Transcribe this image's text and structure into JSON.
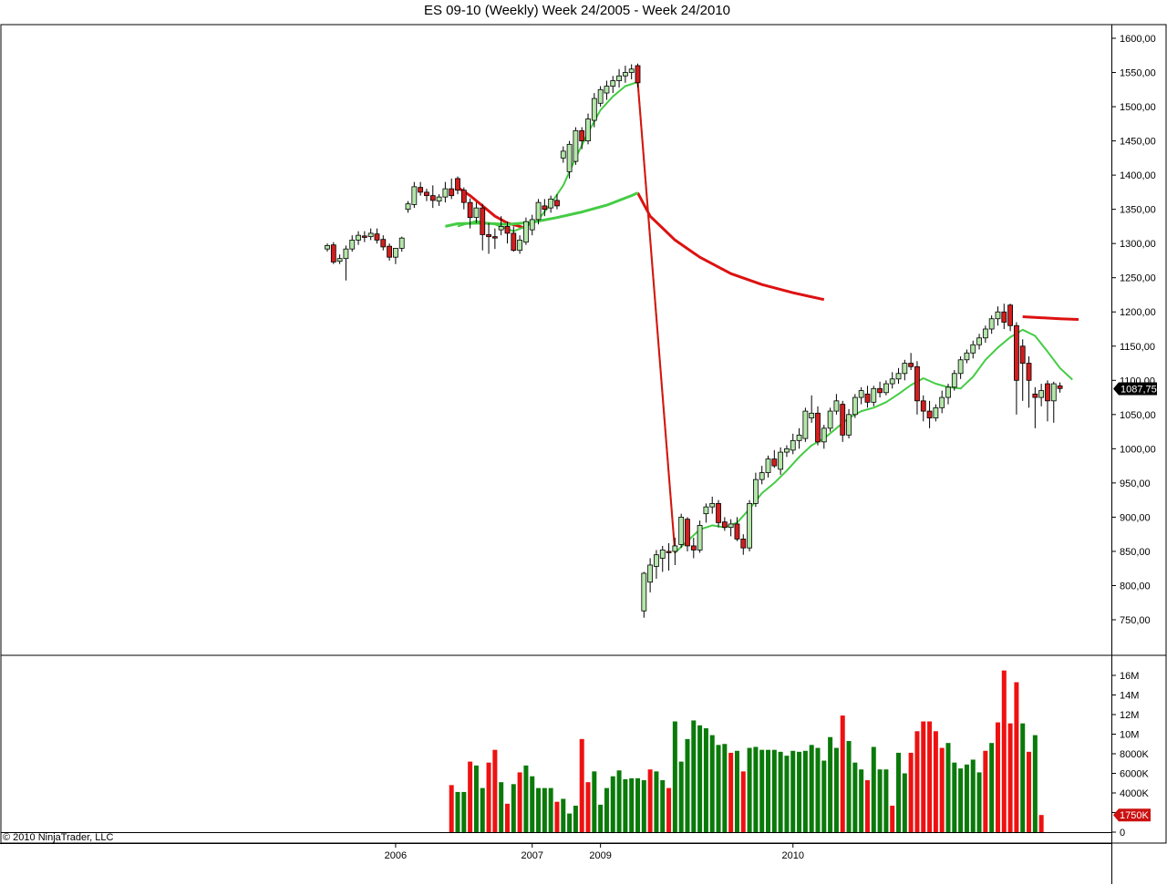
{
  "title": "ES 09-10 (Weekly)  Week 24/2005 - Week 24/2010",
  "copyright": "© 2010 NinjaTrader, LLC",
  "colors": {
    "up_candle": "#b4e6aa",
    "down_candle": "#d21e1e",
    "wick": "#000000",
    "fast_ma": "#44cc44",
    "slow_ma_green": "#44cc44",
    "slow_ma_red": "#dd1111",
    "volume_up": "#0a7a0a",
    "volume_down": "#ee1111",
    "price_marker": "#000000",
    "volume_marker": "#cc1111"
  },
  "chart_data": [
    {
      "type": "candlestick",
      "title": "ES 09-10 (Weekly)  Week 24/2005 - Week 24/2010",
      "y_ticks": [
        "1600,00",
        "1550,00",
        "1500,00",
        "1450,00",
        "1400,00",
        "1350,00",
        "1300,00",
        "1250,00",
        "1200,00",
        "1150,00",
        "1100,00",
        "1050,00",
        "1000,00",
        "950,00",
        "900,00",
        "850,00",
        "800,00",
        "750,00"
      ],
      "ylim": [
        700,
        1615
      ],
      "last_price_label": "1087,75",
      "last_price": 1087.75,
      "x_labels": [
        "2006",
        "2007",
        "2009",
        "2010"
      ],
      "x_label_bars": [
        11,
        33,
        44,
        75
      ],
      "gap_bars": [
        43,
        44
      ],
      "ohlc": [
        [
          1292,
          1300,
          1288,
          1297
        ],
        [
          1298,
          1302,
          1270,
          1273
        ],
        [
          1274,
          1284,
          1270,
          1278
        ],
        [
          1278,
          1297,
          1246,
          1292
        ],
        [
          1292,
          1312,
          1288,
          1305
        ],
        [
          1305,
          1318,
          1298,
          1312
        ],
        [
          1311,
          1318,
          1302,
          1309
        ],
        [
          1310,
          1322,
          1305,
          1315
        ],
        [
          1314,
          1322,
          1300,
          1305
        ],
        [
          1306,
          1312,
          1290,
          1295
        ],
        [
          1296,
          1300,
          1275,
          1280
        ],
        [
          1280,
          1290,
          1270,
          1293
        ],
        [
          1293,
          1310,
          1288,
          1308
        ],
        [
          1350,
          1362,
          1345,
          1358
        ],
        [
          1357,
          1390,
          1352,
          1383
        ],
        [
          1382,
          1390,
          1370,
          1375
        ],
        [
          1375,
          1380,
          1362,
          1370
        ],
        [
          1370,
          1385,
          1352,
          1363
        ],
        [
          1362,
          1372,
          1355,
          1368
        ],
        [
          1368,
          1390,
          1360,
          1380
        ],
        [
          1380,
          1395,
          1365,
          1370
        ],
        [
          1395,
          1398,
          1372,
          1378
        ],
        [
          1378,
          1382,
          1350,
          1360
        ],
        [
          1360,
          1366,
          1322,
          1338
        ],
        [
          1338,
          1360,
          1330,
          1352
        ],
        [
          1352,
          1358,
          1290,
          1313
        ],
        [
          1313,
          1330,
          1285,
          1310
        ],
        [
          1310,
          1322,
          1292,
          1308
        ],
        [
          1320,
          1340,
          1312,
          1325
        ],
        [
          1325,
          1332,
          1300,
          1315
        ],
        [
          1315,
          1325,
          1288,
          1290
        ],
        [
          1290,
          1312,
          1285,
          1305
        ],
        [
          1302,
          1338,
          1298,
          1332
        ],
        [
          1320,
          1342,
          1312,
          1335
        ],
        [
          1335,
          1365,
          1328,
          1360
        ],
        [
          1355,
          1365,
          1340,
          1350
        ],
        [
          1352,
          1370,
          1345,
          1365
        ],
        [
          1363,
          1372,
          1350,
          1355
        ],
        [
          1425,
          1442,
          1418,
          1435
        ],
        [
          1405,
          1450,
          1395,
          1445
        ],
        [
          1420,
          1470,
          1415,
          1465
        ],
        [
          1465,
          1470,
          1438,
          1450
        ],
        [
          1450,
          1490,
          1445,
          1482
        ],
        [
          1480,
          1520,
          1470,
          1512
        ],
        [
          1505,
          1530,
          1500,
          1525
        ],
        [
          1520,
          1538,
          1510,
          1530
        ],
        [
          1530,
          1545,
          1520,
          1538
        ],
        [
          1538,
          1555,
          1528,
          1545
        ],
        [
          1545,
          1560,
          1535,
          1550
        ],
        [
          1550,
          1562,
          1540,
          1555
        ],
        [
          1560,
          1563,
          1528,
          1535
        ],
        [
          763,
          820,
          753,
          818
        ],
        [
          805,
          840,
          790,
          830
        ],
        [
          828,
          852,
          810,
          845
        ],
        [
          840,
          858,
          820,
          852
        ],
        [
          850,
          862,
          822,
          848
        ],
        [
          850,
          870,
          830,
          858
        ],
        [
          860,
          905,
          855,
          900
        ],
        [
          897,
          900,
          850,
          858
        ],
        [
          858,
          870,
          840,
          852
        ],
        [
          852,
          895,
          848,
          888
        ],
        [
          905,
          920,
          892,
          915
        ],
        [
          915,
          930,
          905,
          920
        ],
        [
          920,
          925,
          885,
          892
        ],
        [
          893,
          900,
          880,
          885
        ],
        [
          885,
          897,
          872,
          890
        ],
        [
          890,
          900,
          865,
          868
        ],
        [
          868,
          875,
          845,
          855
        ],
        [
          855,
          925,
          850,
          920
        ],
        [
          920,
          965,
          915,
          955
        ],
        [
          955,
          975,
          948,
          965
        ],
        [
          965,
          990,
          958,
          985
        ],
        [
          985,
          998,
          972,
          975
        ],
        [
          970,
          1002,
          962,
          995
        ],
        [
          995,
          1005,
          988,
          1000
        ],
        [
          998,
          1022,
          992,
          1012
        ],
        [
          1012,
          1030,
          1000,
          1020
        ],
        [
          1015,
          1060,
          1010,
          1055
        ],
        [
          1045,
          1078,
          1038,
          1052
        ],
        [
          1052,
          1062,
          1005,
          1010
        ],
        [
          1010,
          1035,
          1000,
          1030
        ],
        [
          1030,
          1060,
          1025,
          1055
        ],
        [
          1055,
          1080,
          1050,
          1070
        ],
        [
          1065,
          1070,
          1010,
          1020
        ],
        [
          1020,
          1058,
          1015,
          1050
        ],
        [
          1050,
          1080,
          1045,
          1075
        ],
        [
          1075,
          1090,
          1065,
          1085
        ],
        [
          1080,
          1092,
          1060,
          1068
        ],
        [
          1068,
          1092,
          1062,
          1088
        ],
        [
          1088,
          1098,
          1075,
          1082
        ],
        [
          1082,
          1100,
          1078,
          1095
        ],
        [
          1095,
          1112,
          1088,
          1102
        ],
        [
          1102,
          1118,
          1095,
          1110
        ],
        [
          1110,
          1130,
          1100,
          1125
        ],
        [
          1125,
          1140,
          1115,
          1120
        ],
        [
          1120,
          1128,
          1050,
          1070
        ],
        [
          1070,
          1078,
          1040,
          1055
        ],
        [
          1055,
          1070,
          1030,
          1045
        ],
        [
          1045,
          1065,
          1040,
          1060
        ],
        [
          1060,
          1085,
          1052,
          1075
        ],
        [
          1075,
          1095,
          1065,
          1090
        ],
        [
          1090,
          1115,
          1085,
          1110
        ],
        [
          1110,
          1135,
          1102,
          1130
        ],
        [
          1130,
          1145,
          1125,
          1140
        ],
        [
          1140,
          1158,
          1132,
          1152
        ],
        [
          1152,
          1168,
          1145,
          1162
        ],
        [
          1162,
          1180,
          1155,
          1175
        ],
        [
          1175,
          1195,
          1168,
          1190
        ],
        [
          1190,
          1208,
          1180,
          1200
        ],
        [
          1200,
          1212,
          1175,
          1185
        ],
        [
          1210,
          1212,
          1172,
          1180
        ],
        [
          1180,
          1185,
          1050,
          1100
        ],
        [
          1150,
          1160,
          1070,
          1125
        ],
        [
          1125,
          1135,
          1060,
          1100
        ],
        [
          1080,
          1090,
          1030,
          1075
        ],
        [
          1075,
          1095,
          1062,
          1085
        ],
        [
          1095,
          1100,
          1040,
          1070
        ],
        [
          1070,
          1098,
          1038,
          1095
        ],
        [
          1092,
          1097,
          1082,
          1088
        ]
      ],
      "fast_ma": [
        {
          "bar": 21,
          "value": 1325
        },
        {
          "bar": 24,
          "value": 1333
        },
        {
          "bar": 27,
          "value": 1328
        },
        {
          "bar": 30,
          "value": 1318
        },
        {
          "bar": 32,
          "value": 1325
        },
        {
          "bar": 34,
          "value": 1335
        },
        {
          "bar": 36,
          "value": 1358
        },
        {
          "bar": 38,
          "value": 1385
        },
        {
          "bar": 40,
          "value": 1425
        },
        {
          "bar": 42,
          "value": 1462
        },
        {
          "bar": 44,
          "value": 1495
        },
        {
          "bar": 46,
          "value": 1515
        },
        {
          "bar": 48,
          "value": 1530
        },
        {
          "bar": 50,
          "value": 1536
        },
        {
          "bar": 56,
          "value": 848
        },
        {
          "bar": 58,
          "value": 865
        },
        {
          "bar": 60,
          "value": 882
        },
        {
          "bar": 62,
          "value": 888
        },
        {
          "bar": 64,
          "value": 885
        },
        {
          "bar": 66,
          "value": 892
        },
        {
          "bar": 68,
          "value": 912
        },
        {
          "bar": 70,
          "value": 935
        },
        {
          "bar": 72,
          "value": 950
        },
        {
          "bar": 74,
          "value": 968
        },
        {
          "bar": 76,
          "value": 988
        },
        {
          "bar": 78,
          "value": 1005
        },
        {
          "bar": 80,
          "value": 1015
        },
        {
          "bar": 82,
          "value": 1030
        },
        {
          "bar": 84,
          "value": 1045
        },
        {
          "bar": 86,
          "value": 1055
        },
        {
          "bar": 88,
          "value": 1060
        },
        {
          "bar": 90,
          "value": 1068
        },
        {
          "bar": 92,
          "value": 1080
        },
        {
          "bar": 94,
          "value": 1093
        },
        {
          "bar": 96,
          "value": 1103
        },
        {
          "bar": 98,
          "value": 1095
        },
        {
          "bar": 100,
          "value": 1090
        },
        {
          "bar": 102,
          "value": 1088
        },
        {
          "bar": 104,
          "value": 1105
        },
        {
          "bar": 106,
          "value": 1130
        },
        {
          "bar": 108,
          "value": 1148
        },
        {
          "bar": 110,
          "value": 1163
        },
        {
          "bar": 112,
          "value": 1174
        },
        {
          "bar": 114,
          "value": 1165
        },
        {
          "bar": 116,
          "value": 1142
        },
        {
          "bar": 118,
          "value": 1118
        },
        {
          "bar": 120,
          "value": 1101
        }
      ],
      "slow_ma_green": [
        {
          "bar": 19,
          "value": 1325
        },
        {
          "bar": 21,
          "value": 1329
        },
        {
          "bar": 25,
          "value": 1330
        },
        {
          "bar": 29,
          "value": 1328
        },
        {
          "bar": 33,
          "value": 1331
        },
        {
          "bar": 37,
          "value": 1338
        },
        {
          "bar": 41,
          "value": 1346
        },
        {
          "bar": 45,
          "value": 1356
        },
        {
          "bar": 49,
          "value": 1370
        },
        {
          "bar": 50,
          "value": 1374
        }
      ],
      "slow_ma_red": [
        {
          "bar": 21,
          "value": 1382
        },
        {
          "bar": 23,
          "value": 1370
        },
        {
          "bar": 25,
          "value": 1355
        },
        {
          "bar": 27,
          "value": 1340
        },
        {
          "bar": 29,
          "value": 1330
        },
        {
          "bar": 31,
          "value": 1325
        },
        {
          "bar": 32,
          "value": 1322
        },
        {
          "bar": 50,
          "value": 1374
        },
        {
          "bar": 52,
          "value": 1340
        },
        {
          "bar": 56,
          "value": 1305
        },
        {
          "bar": 60,
          "value": 1280
        },
        {
          "bar": 65,
          "value": 1256
        },
        {
          "bar": 70,
          "value": 1240
        },
        {
          "bar": 75,
          "value": 1228
        },
        {
          "bar": 80,
          "value": 1218
        },
        {
          "bar": 88,
          "value": 1205
        },
        {
          "bar": 96,
          "value": 1197
        },
        {
          "bar": 104,
          "value": 1193
        },
        {
          "bar": 112,
          "value": 1193
        },
        {
          "bar": 118,
          "value": 1190
        },
        {
          "bar": 121,
          "value": 1189
        }
      ],
      "drop_line": [
        {
          "bar": 50,
          "value": 1536
        },
        {
          "bar": 56,
          "value": 848
        }
      ]
    },
    {
      "type": "bar",
      "title": "Volume",
      "y_ticks": [
        "16M",
        "14M",
        "12M",
        "10M",
        "8000K",
        "6000K",
        "4000K",
        "2000K",
        "0"
      ],
      "y_tick_values": [
        16000,
        14000,
        12000,
        10000,
        8000,
        6000,
        4000,
        2000,
        0
      ],
      "ylim": [
        0,
        17000
      ],
      "unit": "K",
      "last_volume_label": "1750K",
      "last_volume": 1750,
      "start_bar": 20,
      "values": [
        4800,
        4100,
        4100,
        7200,
        6800,
        4500,
        7100,
        8400,
        5100,
        2900,
        4900,
        6100,
        6800,
        5700,
        4500,
        4500,
        4500,
        3100,
        3400,
        1900,
        2700,
        9500,
        5100,
        6200,
        2800,
        4500,
        5700,
        6300,
        5400,
        5500,
        5500,
        5300,
        6400,
        6200,
        5300,
        4500,
        11300,
        7200,
        9500,
        11400,
        10900,
        10600,
        9900,
        8900,
        9000,
        8100,
        8300,
        6200,
        8600,
        8700,
        8400,
        8400,
        8400,
        8200,
        7800,
        8300,
        8200,
        8300,
        8900,
        8600,
        7300,
        9700,
        8600,
        11900,
        9300,
        7100,
        6400,
        5300,
        8700,
        6400,
        6400,
        2700,
        8100,
        6000,
        8100,
        10300,
        11300,
        11300,
        10300,
        8600,
        9100,
        7100,
        6500,
        6900,
        7400,
        6100,
        8300,
        9100,
        11200,
        16500,
        11100,
        15300,
        11100,
        8200,
        9900,
        1750
      ],
      "down": [
        1,
        0,
        0,
        1,
        0,
        0,
        1,
        1,
        0,
        1,
        0,
        1,
        0,
        0,
        0,
        0,
        0,
        1,
        0,
        0,
        0,
        1,
        1,
        0,
        0,
        0,
        0,
        0,
        0,
        0,
        0,
        0,
        1,
        0,
        0,
        1,
        0,
        0,
        0,
        0,
        0,
        0,
        0,
        0,
        0,
        1,
        0,
        1,
        0,
        0,
        0,
        0,
        0,
        0,
        0,
        0,
        0,
        0,
        0,
        0,
        0,
        0,
        0,
        1,
        0,
        0,
        0,
        1,
        0,
        0,
        0,
        1,
        0,
        0,
        1,
        1,
        1,
        1,
        1,
        1,
        0,
        0,
        0,
        0,
        0,
        0,
        1,
        0,
        1,
        1,
        1,
        1,
        0,
        1,
        0,
        1
      ]
    }
  ]
}
